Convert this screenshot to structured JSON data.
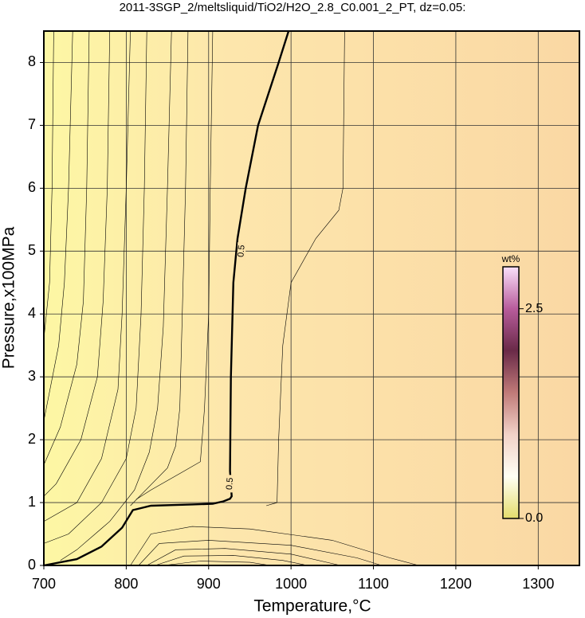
{
  "chart_data": {
    "type": "contour",
    "title": "2011-3SGP_2/meltsliquid/TiO2/H2O_2.8_C0.001_2_PT, dz=0.05:",
    "x_label": "Temperature,°C",
    "y_label": "Pressure,x100MPa",
    "xlim": [
      700,
      1350
    ],
    "ylim": [
      0,
      8.5
    ],
    "xticks": [
      700,
      800,
      900,
      1000,
      1100,
      1200,
      1300
    ],
    "yticks": [
      0,
      1,
      2,
      3,
      4,
      5,
      6,
      7,
      8
    ],
    "grid": true,
    "contours": [
      {
        "level": 0.5,
        "x": [
          700,
          740,
          770,
          795,
          808,
          830,
          880,
          905,
          918,
          926,
          928,
          926,
          927,
          930,
          935,
          945,
          960,
          985,
          997
        ],
        "y": [
          0,
          0.1,
          0.3,
          0.6,
          0.88,
          0.95,
          0.97,
          0.98,
          1.02,
          1.06,
          1.1,
          1.5,
          3,
          4.5,
          5.2,
          6,
          7,
          8,
          8.5
        ],
        "label_at": [
          [
            926,
            1.3
          ],
          [
            940,
            5.0
          ]
        ]
      },
      {
        "x": [
          712,
          710,
          707,
          700
        ],
        "y": [
          8.5,
          6,
          4.5,
          3.6
        ]
      },
      {
        "x": [
          735,
          730,
          725,
          718,
          700
        ],
        "y": [
          8.5,
          6,
          4.5,
          3.5,
          2.3
        ]
      },
      {
        "x": [
          755,
          752,
          748,
          740,
          720,
          700
        ],
        "y": [
          8.5,
          6,
          4.2,
          3.2,
          2.2,
          1.6
        ]
      },
      {
        "x": [
          780,
          777,
          772,
          765,
          745,
          715,
          700
        ],
        "y": [
          8.5,
          6,
          4.2,
          3.0,
          2.0,
          1.3,
          1.1
        ]
      },
      {
        "x": [
          805,
          800,
          795,
          790,
          770,
          740,
          700
        ],
        "y": [
          8.5,
          6,
          4.0,
          2.8,
          1.7,
          1.0,
          0.7
        ]
      },
      {
        "x": [
          825,
          822,
          818,
          812,
          800,
          770,
          730,
          700
        ],
        "y": [
          8.5,
          6,
          4.0,
          2.5,
          1.7,
          1.0,
          0.5,
          0.35
        ]
      },
      {
        "x": [
          855,
          850,
          845,
          838,
          828,
          810,
          780,
          740,
          720
        ],
        "y": [
          8.5,
          6,
          3.8,
          2.5,
          1.8,
          1.2,
          0.7,
          0.25,
          0.08
        ]
      },
      {
        "x": [
          875,
          872,
          868,
          865,
          860,
          850,
          820,
          805
        ],
        "y": [
          8.5,
          6,
          4,
          2.5,
          1.9,
          1.55,
          1.15,
          0.95
        ]
      },
      {
        "x": [
          905,
          902,
          900,
          895,
          890,
          870,
          830,
          812
        ],
        "y": [
          8.5,
          6,
          4,
          2.5,
          1.65,
          1.5,
          1.2,
          1.05
        ]
      },
      {
        "x": [
          1065,
          1063,
          1058,
          1030,
          1000,
          990,
          985,
          983,
          970
        ],
        "y": [
          8.5,
          6,
          5.65,
          5.2,
          4.5,
          3.5,
          2,
          1.0,
          0.95
        ]
      },
      {
        "x": [
          805,
          830,
          880,
          950,
          1050,
          1120,
          1155
        ],
        "y": [
          0,
          0.5,
          0.62,
          0.58,
          0.4,
          0.12,
          0
        ]
      },
      {
        "x": [
          815,
          840,
          900,
          1000,
          1080,
          1110
        ],
        "y": [
          0,
          0.35,
          0.4,
          0.32,
          0.12,
          0
        ]
      },
      {
        "x": [
          825,
          860,
          920,
          1000,
          1060
        ],
        "y": [
          0,
          0.25,
          0.27,
          0.18,
          0
        ]
      },
      {
        "x": [
          835,
          870,
          930,
          990,
          1020
        ],
        "y": [
          0,
          0.15,
          0.16,
          0.08,
          0
        ]
      },
      {
        "x": [
          845,
          890,
          950,
          975
        ],
        "y": [
          0,
          0.07,
          0.05,
          0
        ]
      }
    ],
    "colorbar": {
      "label": "wt%",
      "lim": [
        0,
        3.0
      ],
      "ticks": [
        {
          "value": 0,
          "label": "0.0"
        },
        2.5
      ],
      "colormap": [
        "#e4dc6c",
        "#fffff4",
        "#f2d2c8",
        "#c07a78",
        "#6a2a48",
        "#b85c9c",
        "#fbe0fb"
      ]
    }
  }
}
